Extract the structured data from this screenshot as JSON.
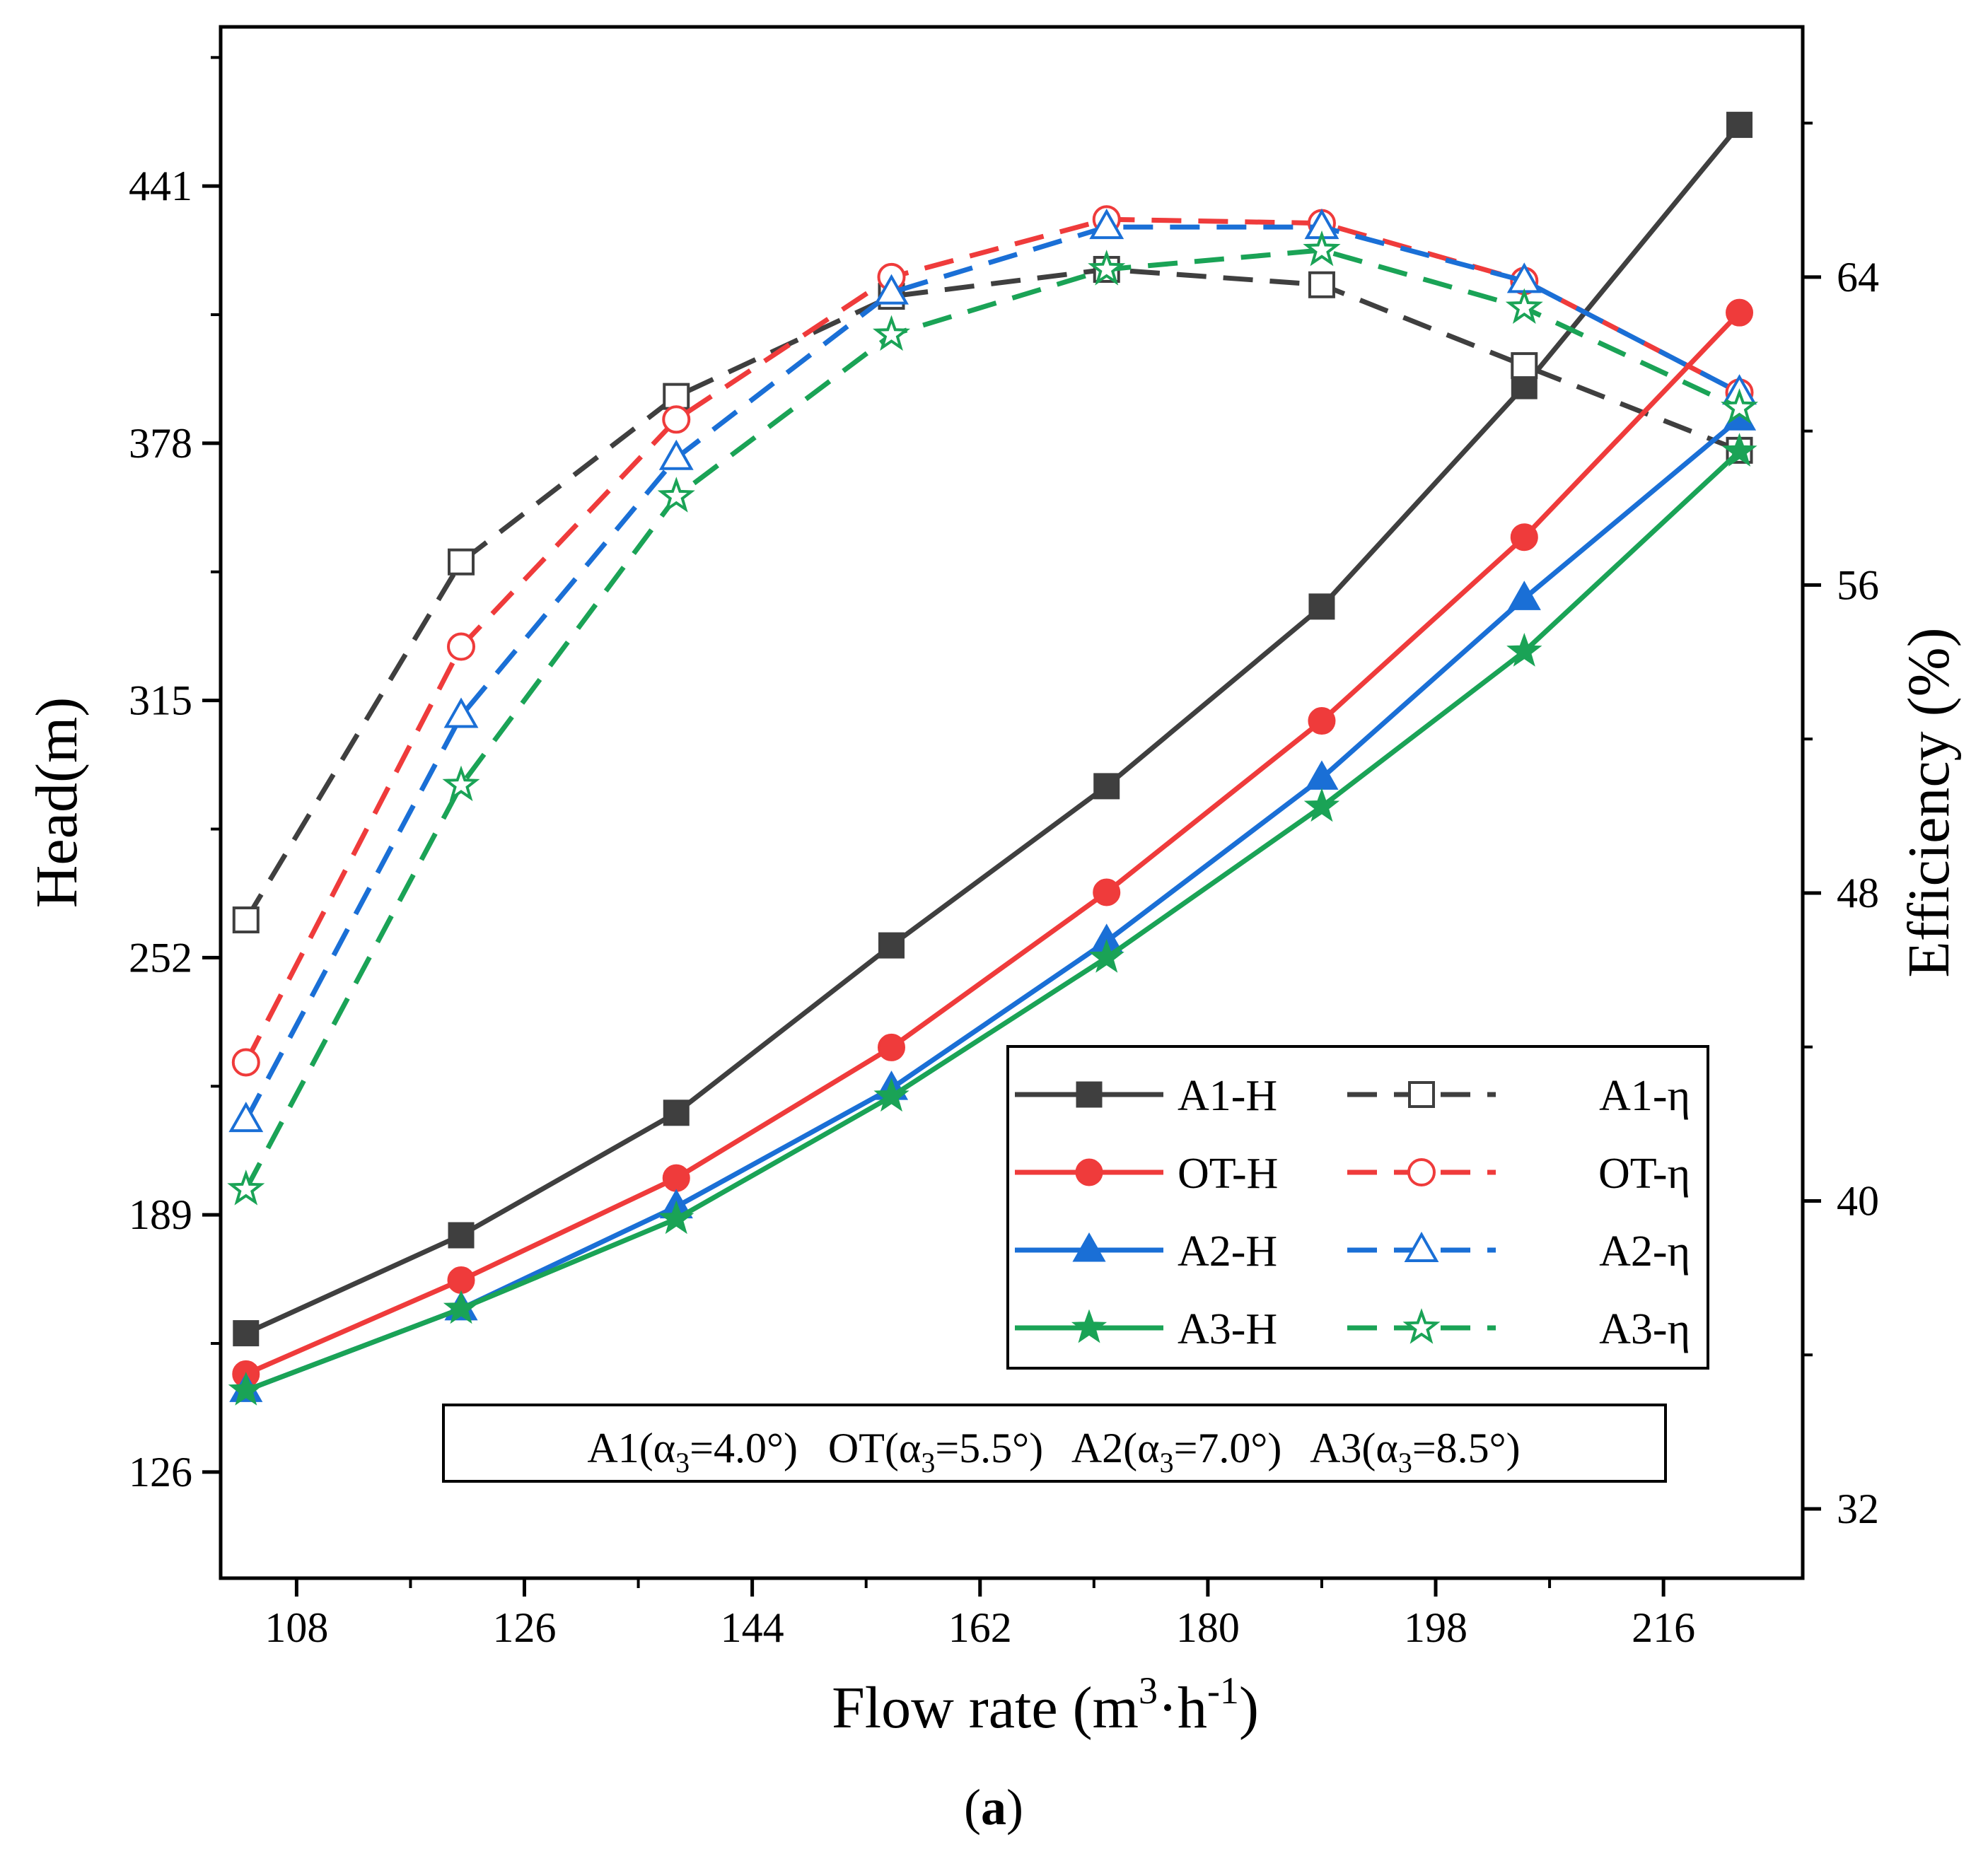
{
  "chart_data": {
    "type": "line",
    "title": "",
    "xlabel": "Flow rate (m",
    "xlabel_sup1": "3",
    "xlabel_mid": "·h",
    "xlabel_sup2": "-1",
    "xlabel_end": ")",
    "ylabel_left": "Head(m)",
    "ylabel_right": "Efficiency (%)",
    "caption_open": "(",
    "caption_letter": "a",
    "caption_close": ")",
    "xlim": [
      102,
      227
    ],
    "ylim_left": [
      100,
      480
    ],
    "ylim_right": [
      30.2,
      70.5
    ],
    "x_ticks": [
      108,
      126,
      144,
      162,
      180,
      198,
      216
    ],
    "y_left_ticks": [
      126,
      189,
      252,
      315,
      378,
      441
    ],
    "y_right_ticks": [
      32,
      40,
      48,
      56,
      64
    ],
    "x": [
      104,
      121,
      138,
      155,
      172,
      189,
      205,
      222
    ],
    "legend_position": "center-right",
    "grid": false,
    "series": [
      {
        "name": "A1-H",
        "axis": "left",
        "color": "#3f3f3f",
        "style": "solid",
        "marker": "square",
        "filled": true,
        "values": [
          160,
          184,
          214,
          255,
          294,
          338,
          392,
          456
        ]
      },
      {
        "name": "A1-η",
        "axis": "right",
        "color": "#3f3f3f",
        "style": "dashed",
        "marker": "square",
        "filled": false,
        "values": [
          47.3,
          56.6,
          60.9,
          63.5,
          64.2,
          63.8,
          61.7,
          59.5
        ]
      },
      {
        "name": "OT-H",
        "axis": "left",
        "color": "#ef3b3b",
        "style": "solid",
        "marker": "circle",
        "filled": true,
        "values": [
          150,
          173,
          198,
          230,
          268,
          310,
          355,
          410
        ]
      },
      {
        "name": "OT-η",
        "axis": "right",
        "color": "#ef3b3b",
        "style": "dashed",
        "marker": "circle",
        "filled": false,
        "values": [
          43.6,
          54.4,
          60.3,
          64.0,
          65.5,
          65.4,
          63.9,
          61.0
        ]
      },
      {
        "name": "A2-H",
        "axis": "left",
        "color": "#1a6fd6",
        "style": "solid",
        "marker": "triangle",
        "filled": true,
        "values": [
          146,
          166,
          191,
          220,
          256,
          296,
          340,
          384
        ]
      },
      {
        "name": "A2-η",
        "axis": "right",
        "color": "#1a6fd6",
        "style": "dashed",
        "marker": "triangle",
        "filled": false,
        "values": [
          42.1,
          52.6,
          59.3,
          63.6,
          65.3,
          65.3,
          63.9,
          61.0
        ]
      },
      {
        "name": "A3-H",
        "axis": "left",
        "color": "#1aa356",
        "style": "solid",
        "marker": "star",
        "filled": true,
        "values": [
          146,
          166,
          188,
          218,
          252,
          289,
          327,
          376
        ]
      },
      {
        "name": "A3-η",
        "axis": "right",
        "color": "#1aa356",
        "style": "dashed",
        "marker": "star",
        "filled": false,
        "values": [
          40.3,
          50.8,
          58.3,
          62.5,
          64.2,
          64.7,
          63.2,
          60.6
        ]
      }
    ],
    "legend_order": [
      "A1-H",
      "A1-η",
      "OT-H",
      "OT-η",
      "A2-H",
      "A2-η",
      "A3-H",
      "A3-η"
    ],
    "note": [
      {
        "pre": "A1(α",
        "sub": "3",
        "post": "=4.0°)"
      },
      {
        "pre": "OT(α",
        "sub": "3",
        "post": "=5.5°)"
      },
      {
        "pre": "A2(α",
        "sub": "3",
        "post": "=7.0°)"
      },
      {
        "pre": "A3(α",
        "sub": "3",
        "post": "=8.5°)"
      }
    ]
  }
}
